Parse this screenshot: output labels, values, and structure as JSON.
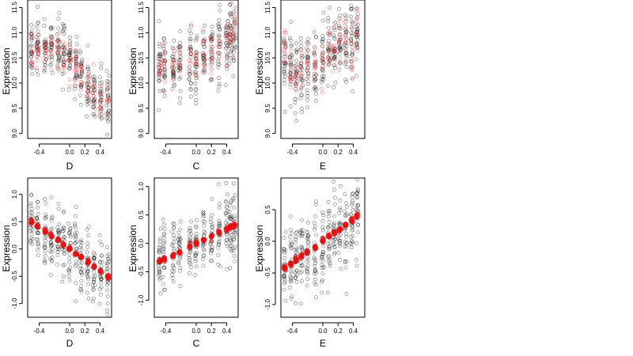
{
  "colors": {
    "observed": "#000000",
    "fitted": "#e41a1c"
  },
  "chart_data": [
    {
      "type": "scatter",
      "xlabel": "D",
      "ylabel": "Expression",
      "xlim": [
        -0.55,
        0.55
      ],
      "ylim": [
        8.9,
        11.65
      ],
      "xticks": [
        -0.4,
        0.0,
        0.2,
        0.4
      ],
      "xtick_labels": [
        "-0.4",
        "0.0",
        "0.2",
        "0.4"
      ],
      "yticks": [
        9.0,
        9.5,
        10.0,
        10.5,
        11.0,
        11.5
      ],
      "ytick_labels": [
        "9.0",
        "9.5",
        "10.0",
        "10.5",
        "11.0",
        "11.5"
      ],
      "x_values": [
        -0.5,
        -0.42,
        -0.32,
        -0.24,
        -0.15,
        -0.08,
        0.0,
        0.08,
        0.15,
        0.24,
        0.32,
        0.41,
        0.5
      ],
      "series": [
        {
          "marker": "black-open",
          "trend": [
            10.75,
            10.7,
            10.65,
            10.75,
            10.7,
            10.6,
            10.55,
            10.35,
            10.2,
            10.0,
            9.85,
            9.7,
            9.65
          ],
          "spread": 0.28
        },
        {
          "marker": "red-open",
          "trend": [
            10.7,
            10.65,
            10.6,
            10.7,
            10.65,
            10.55,
            10.5,
            10.3,
            10.15,
            9.95,
            9.8,
            9.65,
            9.6
          ],
          "spread": 0.18
        }
      ]
    },
    {
      "type": "scatter",
      "xlabel": "C",
      "ylabel": "Expression",
      "xlim": [
        -0.55,
        0.55
      ],
      "ylim": [
        8.9,
        11.65
      ],
      "xticks": [
        -0.4,
        0.0,
        0.2,
        0.4
      ],
      "xtick_labels": [
        "-0.4",
        "0.0",
        "0.2",
        "0.4"
      ],
      "yticks": [
        9.0,
        9.5,
        10.0,
        10.5,
        11.0,
        11.5
      ],
      "ytick_labels": [
        "9.0",
        "9.5",
        "10.0",
        "10.5",
        "11.0",
        "11.5"
      ],
      "x_values": [
        -0.48,
        -0.42,
        -0.3,
        -0.22,
        -0.08,
        0.0,
        0.1,
        0.2,
        0.3,
        0.4,
        0.45,
        0.5
      ],
      "series": [
        {
          "marker": "black-open",
          "trend": [
            10.3,
            10.35,
            10.3,
            10.4,
            10.45,
            10.3,
            10.5,
            10.55,
            10.7,
            10.8,
            10.95,
            11.0
          ],
          "spread": 0.35
        },
        {
          "marker": "red-open",
          "trend": [
            10.3,
            10.35,
            10.3,
            10.45,
            10.45,
            10.3,
            10.55,
            10.6,
            10.75,
            10.85,
            11.0,
            11.05
          ],
          "spread": 0.22
        }
      ]
    },
    {
      "type": "scatter",
      "xlabel": "E",
      "ylabel": "Expression",
      "xlim": [
        -0.55,
        0.55
      ],
      "ylim": [
        8.9,
        11.65
      ],
      "xticks": [
        -0.4,
        0.0,
        0.2,
        0.4
      ],
      "xtick_labels": [
        "-0.4",
        "0.0",
        "0.2",
        "0.4"
      ],
      "yticks": [
        9.0,
        9.5,
        10.0,
        10.5,
        11.0,
        11.5
      ],
      "ytick_labels": [
        "9.0",
        "9.5",
        "10.0",
        "10.5",
        "11.0",
        "11.5"
      ],
      "x_values": [
        -0.5,
        -0.42,
        -0.35,
        -0.28,
        -0.2,
        -0.1,
        0.0,
        0.08,
        0.15,
        0.22,
        0.3,
        0.38,
        0.45
      ],
      "series": [
        {
          "marker": "black-open",
          "trend": [
            10.5,
            10.2,
            10.1,
            10.15,
            10.3,
            10.3,
            10.45,
            10.55,
            10.7,
            10.8,
            10.85,
            10.8,
            10.9
          ],
          "spread": 0.35
        },
        {
          "marker": "red-open",
          "trend": [
            10.6,
            10.25,
            10.15,
            10.2,
            10.35,
            10.35,
            10.5,
            10.6,
            10.75,
            10.85,
            10.9,
            10.5,
            11.05
          ],
          "spread": 0.25
        }
      ]
    },
    {
      "type": "scatter",
      "xlabel": "D",
      "ylabel": "Expression",
      "xlim": [
        -0.55,
        0.55
      ],
      "ylim": [
        -1.25,
        1.3
      ],
      "xticks": [
        -0.4,
        0.0,
        0.2,
        0.4
      ],
      "xtick_labels": [
        "-0.4",
        "0.0",
        "0.2",
        "0.4"
      ],
      "yticks": [
        -1.0,
        -0.5,
        0.0,
        0.5,
        1.0
      ],
      "ytick_labels": [
        "-1.0",
        "-0.5",
        "0.0",
        "0.5",
        "1.0"
      ],
      "x_values": [
        -0.5,
        -0.42,
        -0.32,
        -0.24,
        -0.15,
        -0.08,
        0.0,
        0.08,
        0.15,
        0.24,
        0.32,
        0.41,
        0.5
      ],
      "series": [
        {
          "marker": "black-open",
          "trend": [
            0.5,
            0.42,
            0.32,
            0.25,
            0.16,
            0.08,
            0.0,
            -0.08,
            -0.15,
            -0.24,
            -0.32,
            -0.41,
            -0.5
          ],
          "spread": 0.3
        },
        {
          "marker": "red-filled",
          "trend": [
            0.5,
            0.42,
            0.32,
            0.25,
            0.16,
            0.08,
            0.0,
            -0.08,
            -0.15,
            -0.24,
            -0.32,
            -0.41,
            -0.5
          ],
          "spread": 0.02
        }
      ]
    },
    {
      "type": "scatter",
      "xlabel": "C",
      "ylabel": "Expression",
      "xlim": [
        -0.55,
        0.55
      ],
      "ylim": [
        -1.3,
        1.15
      ],
      "xticks": [
        -0.4,
        0.0,
        0.2,
        0.4
      ],
      "xtick_labels": [
        "-0.4",
        "0.0",
        "0.2",
        "0.4"
      ],
      "yticks": [
        -1.0,
        -0.5,
        0.0,
        0.5,
        1.0
      ],
      "ytick_labels": [
        "-1.0",
        "-0.5",
        "0.0",
        "0.5",
        "1.0"
      ],
      "x_values": [
        -0.48,
        -0.42,
        -0.3,
        -0.22,
        -0.08,
        0.0,
        0.1,
        0.2,
        0.3,
        0.4,
        0.45,
        0.5
      ],
      "series": [
        {
          "marker": "black-open",
          "trend": [
            -0.3,
            -0.27,
            -0.2,
            -0.16,
            -0.05,
            0.0,
            0.06,
            0.13,
            0.2,
            0.26,
            0.29,
            0.32
          ],
          "spread": 0.3
        },
        {
          "marker": "red-filled",
          "trend": [
            -0.3,
            -0.27,
            -0.2,
            -0.16,
            -0.05,
            0.0,
            0.06,
            0.13,
            0.2,
            0.26,
            0.29,
            0.32
          ],
          "spread": 0.02
        }
      ]
    },
    {
      "type": "scatter",
      "xlabel": "E",
      "ylabel": "Expression",
      "xlim": [
        -0.55,
        0.55
      ],
      "ylim": [
        -1.2,
        1.0
      ],
      "xticks": [
        -0.4,
        0.0,
        0.2,
        0.4
      ],
      "xtick_labels": [
        "-0.4",
        "0.0",
        "0.2",
        "0.4"
      ],
      "yticks": [
        -1.0,
        -0.5,
        0.0,
        0.5
      ],
      "ytick_labels": [
        "-1.0",
        "-0.5",
        "0.0",
        "0.5"
      ],
      "x_values": [
        -0.5,
        -0.42,
        -0.35,
        -0.28,
        -0.2,
        -0.1,
        0.0,
        0.08,
        0.15,
        0.22,
        0.3,
        0.38,
        0.45
      ],
      "series": [
        {
          "marker": "black-open",
          "trend": [
            -0.42,
            -0.36,
            -0.3,
            -0.24,
            -0.17,
            -0.09,
            0.0,
            0.07,
            0.13,
            0.19,
            0.26,
            0.33,
            0.39
          ],
          "spread": 0.32
        },
        {
          "marker": "red-filled",
          "trend": [
            -0.42,
            -0.36,
            -0.3,
            -0.24,
            -0.17,
            -0.09,
            0.0,
            0.07,
            0.13,
            0.19,
            0.26,
            0.33,
            0.39
          ],
          "spread": 0.02
        }
      ]
    }
  ]
}
